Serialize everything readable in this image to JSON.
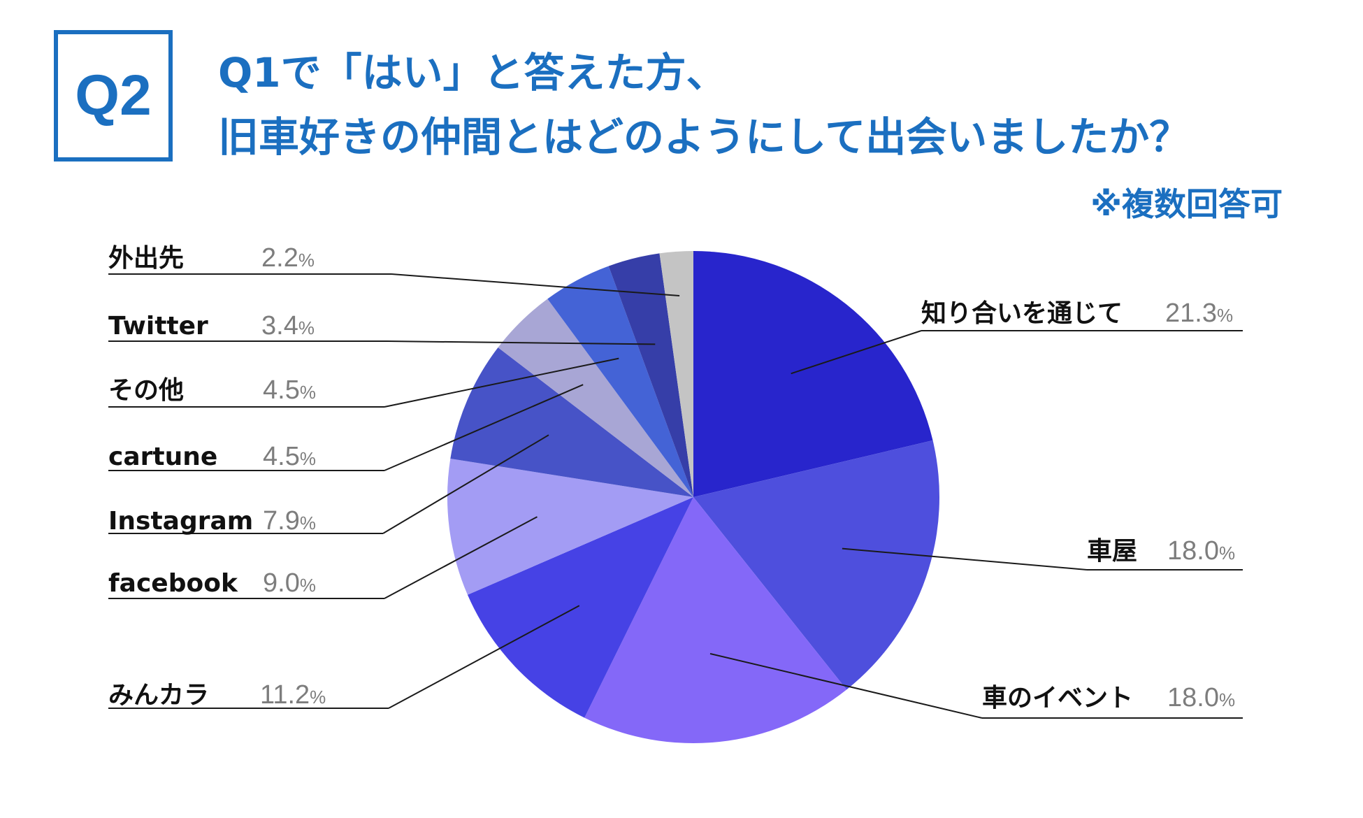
{
  "badge": "Q2",
  "title": {
    "line1": "Q1で「はい」と答えた方、",
    "line2": "旧車好きの仲間とはどのようにして出会いましたか？"
  },
  "note": "※複数回答可",
  "chart_data": {
    "type": "pie",
    "title": "旧車好きの仲間とはどのようにして出会いましたか？",
    "unit": "%",
    "slices": [
      {
        "label": "知り合いを通じて",
        "value": 21.3,
        "display": "21.3",
        "color": "#2825cc"
      },
      {
        "label": "車屋",
        "value": 18.0,
        "display": "18.0",
        "color": "#4e4fdd"
      },
      {
        "label": "車のイベント",
        "value": 18.0,
        "display": "18.0",
        "color": "#8468f8"
      },
      {
        "label": "みんカラ",
        "value": 11.2,
        "display": "11.2",
        "color": "#4642e5"
      },
      {
        "label": "facebook",
        "value": 9.0,
        "display": "9.0",
        "color": "#a39cf4"
      },
      {
        "label": "Instagram",
        "value": 7.9,
        "display": "7.9",
        "color": "#4753c7"
      },
      {
        "label": "cartune",
        "value": 4.5,
        "display": "4.5",
        "color": "#a8a6d5"
      },
      {
        "label": "その他",
        "value": 4.5,
        "display": "4.5",
        "color": "#4463d6"
      },
      {
        "label": "Twitter",
        "value": 3.4,
        "display": "3.4",
        "color": "#363ea8"
      },
      {
        "label": "外出先",
        "value": 2.2,
        "display": "2.2",
        "color": "#c4c4c4"
      }
    ]
  }
}
